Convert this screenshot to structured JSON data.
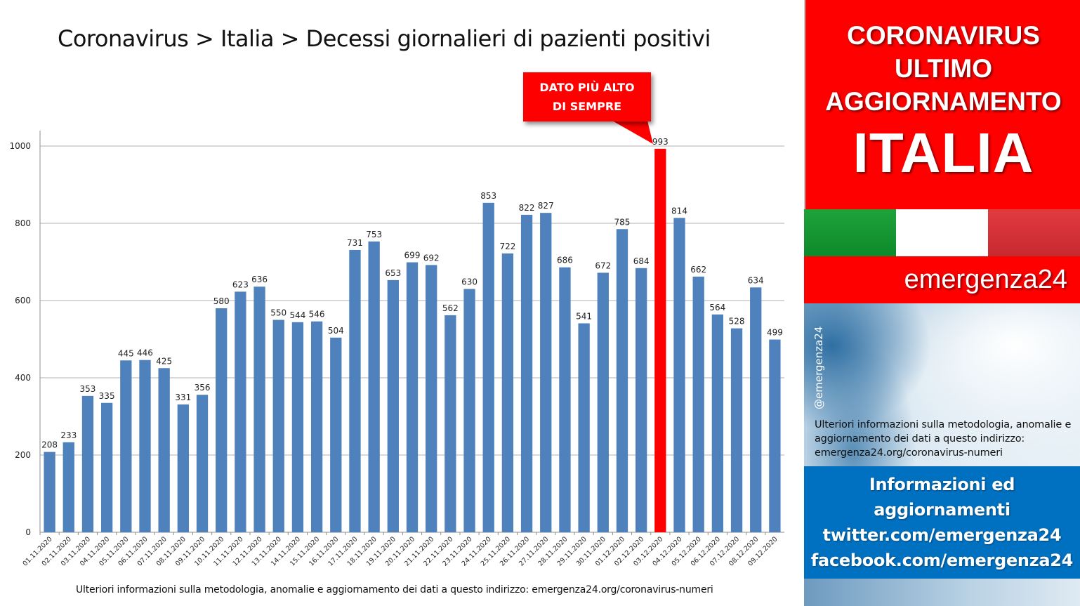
{
  "title": "Coronavirus > Italia > Decessi giornalieri di pazienti positivi",
  "footer_note": "Ulteriori informazioni sulla metodologia, anomalie e aggiornamento dei dati a questo indirizzo: emergenza24.org/coronavirus-numeri",
  "callout": {
    "line1": "DATO PIÙ ALTO",
    "line2": "DI SEMPRE"
  },
  "colors": {
    "bar": "#4f81bd",
    "highlight": "#ff0000",
    "sidebar_red": "#ff0000",
    "info_blue": "#0070c0"
  },
  "chart_data": {
    "type": "bar",
    "title": "Coronavirus > Italia > Decessi giornalieri di pazienti positivi",
    "xlabel": "",
    "ylabel": "",
    "ylim": [
      0,
      1000
    ],
    "yticks": [
      0,
      200,
      400,
      600,
      800,
      1000
    ],
    "grid": true,
    "highlight_index": 32,
    "categories": [
      "01.11.2020",
      "02.11.2020",
      "03.11.2020",
      "04.11.2020",
      "05.11.2020",
      "06.11.2020",
      "07.11.2020",
      "08.11.2020",
      "09.11.2020",
      "10.11.2020",
      "11.11.2020",
      "12.11.2020",
      "13.11.2020",
      "14.11.2020",
      "15.11.2020",
      "16.11.2020",
      "17.11.2020",
      "18.11.2020",
      "19.11.2020",
      "20.11.2020",
      "21.11.2020",
      "22.11.2020",
      "23.11.2020",
      "24.11.2020",
      "25.11.2020",
      "26.11.2020",
      "27.11.2020",
      "28.11.2020",
      "29.11.2020",
      "30.11.2020",
      "01.12.2020",
      "02.12.2020",
      "03.12.2020",
      "04.12.2020",
      "05.12.2020",
      "06.12.2020",
      "07.12.2020",
      "08.12.2020",
      "09.12.2020"
    ],
    "values": [
      208,
      233,
      353,
      335,
      445,
      446,
      425,
      331,
      356,
      580,
      623,
      636,
      550,
      544,
      546,
      504,
      731,
      753,
      653,
      699,
      692,
      562,
      630,
      853,
      722,
      822,
      827,
      686,
      541,
      672,
      785,
      684,
      993,
      814,
      662,
      564,
      528,
      634,
      499
    ]
  },
  "sidebar": {
    "line1": "CORONAVIRUS",
    "line2": "ULTIMO",
    "line3": "AGGIORNAMENTO",
    "line4": "ITALIA",
    "brand": "emergenza24",
    "handle": "@emergenza24",
    "note": "Ulteriori informazioni sulla metodologia, anomalie e aggiornamento dei dati a questo indirizzo: emergenza24.org/coronavirus-numeri",
    "info_lines": [
      "Informazioni ed",
      "aggiornamenti",
      "twitter.com/emergenza24",
      "facebook.com/emergenza24"
    ]
  }
}
